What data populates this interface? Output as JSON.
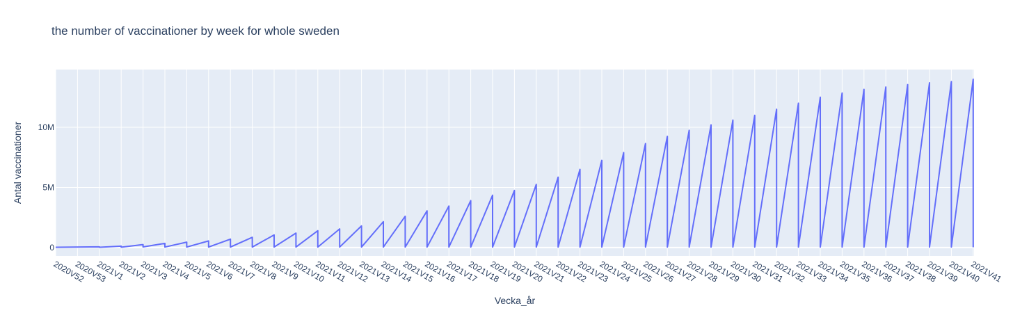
{
  "colors": {
    "plot_background": "#e5ecf6",
    "gridline": "#ffffff",
    "line": "#636efa",
    "text": "#2a3f5f"
  },
  "chart_data": {
    "type": "line",
    "title": "the number of vaccinationer by week for whole sweden",
    "xlabel": "Vecka_år",
    "ylabel": "Antal vaccinationer",
    "ylim": [
      -700000,
      14800000
    ],
    "y_ticks": [
      0,
      5000000,
      10000000
    ],
    "y_tick_labels": [
      "0",
      "5M",
      "10M"
    ],
    "grid": true,
    "categories": [
      "2020V52",
      "2020V53",
      "2021V1",
      "2021V2",
      "2021V3",
      "2021V4",
      "2021V5",
      "2021V6",
      "2021V7",
      "2021V8",
      "2021V9",
      "2021V10",
      "2021V11",
      "2021V12",
      "2021V13",
      "2021V14",
      "2021V15",
      "2021V16",
      "2021V17",
      "2021V18",
      "2021V19",
      "2021V20",
      "2021V21",
      "2021V22",
      "2021V23",
      "2021V24",
      "2021V25",
      "2021V26",
      "2021V27",
      "2021V28",
      "2021V29",
      "2021V30",
      "2021V31",
      "2021V32",
      "2021V33",
      "2021V34",
      "2021V35",
      "2021V36",
      "2021V37",
      "2021V38",
      "2021V39",
      "2021V40",
      "2021V41"
    ],
    "series": [
      {
        "name": "",
        "points": [
          {
            "x": "2020V52",
            "y": 20000
          },
          {
            "x": "2021V1",
            "y": 60000
          },
          {
            "x": "2021V1",
            "y": 20000
          },
          {
            "x": "2021V2",
            "y": 120000
          },
          {
            "x": "2021V2",
            "y": 30000
          },
          {
            "x": "2021V3",
            "y": 250000
          },
          {
            "x": "2021V3",
            "y": 50000
          },
          {
            "x": "2021V4",
            "y": 350000
          },
          {
            "x": "2021V4",
            "y": 40000
          },
          {
            "x": "2021V5",
            "y": 450000
          },
          {
            "x": "2021V5",
            "y": 40000
          },
          {
            "x": "2021V6",
            "y": 550000
          },
          {
            "x": "2021V6",
            "y": 40000
          },
          {
            "x": "2021V7",
            "y": 700000
          },
          {
            "x": "2021V7",
            "y": 40000
          },
          {
            "x": "2021V8",
            "y": 850000
          },
          {
            "x": "2021V8",
            "y": 40000
          },
          {
            "x": "2021V9",
            "y": 1050000
          },
          {
            "x": "2021V9",
            "y": 40000
          },
          {
            "x": "2021V10",
            "y": 1200000
          },
          {
            "x": "2021V10",
            "y": 40000
          },
          {
            "x": "2021V11",
            "y": 1400000
          },
          {
            "x": "2021V11",
            "y": 40000
          },
          {
            "x": "2021V12",
            "y": 1550000
          },
          {
            "x": "2021V12",
            "y": 40000
          },
          {
            "x": "2021V13",
            "y": 1800000
          },
          {
            "x": "2021V13",
            "y": 40000
          },
          {
            "x": "2021V14",
            "y": 2150000
          },
          {
            "x": "2021V14",
            "y": 40000
          },
          {
            "x": "2021V15",
            "y": 2600000
          },
          {
            "x": "2021V15",
            "y": 40000
          },
          {
            "x": "2021V16",
            "y": 3050000
          },
          {
            "x": "2021V16",
            "y": 40000
          },
          {
            "x": "2021V17",
            "y": 3450000
          },
          {
            "x": "2021V17",
            "y": 40000
          },
          {
            "x": "2021V18",
            "y": 3900000
          },
          {
            "x": "2021V18",
            "y": 40000
          },
          {
            "x": "2021V19",
            "y": 4350000
          },
          {
            "x": "2021V19",
            "y": 40000
          },
          {
            "x": "2021V20",
            "y": 4750000
          },
          {
            "x": "2021V20",
            "y": 40000
          },
          {
            "x": "2021V21",
            "y": 5250000
          },
          {
            "x": "2021V21",
            "y": 40000
          },
          {
            "x": "2021V22",
            "y": 5850000
          },
          {
            "x": "2021V22",
            "y": 40000
          },
          {
            "x": "2021V23",
            "y": 6500000
          },
          {
            "x": "2021V23",
            "y": 40000
          },
          {
            "x": "2021V24",
            "y": 7250000
          },
          {
            "x": "2021V24",
            "y": 40000
          },
          {
            "x": "2021V25",
            "y": 7900000
          },
          {
            "x": "2021V25",
            "y": 40000
          },
          {
            "x": "2021V26",
            "y": 8650000
          },
          {
            "x": "2021V26",
            "y": 40000
          },
          {
            "x": "2021V27",
            "y": 9250000
          },
          {
            "x": "2021V27",
            "y": 40000
          },
          {
            "x": "2021V28",
            "y": 9750000
          },
          {
            "x": "2021V28",
            "y": 40000
          },
          {
            "x": "2021V29",
            "y": 10200000
          },
          {
            "x": "2021V29",
            "y": 40000
          },
          {
            "x": "2021V30",
            "y": 10600000
          },
          {
            "x": "2021V30",
            "y": 40000
          },
          {
            "x": "2021V31",
            "y": 11000000
          },
          {
            "x": "2021V31",
            "y": 40000
          },
          {
            "x": "2021V32",
            "y": 11500000
          },
          {
            "x": "2021V32",
            "y": 40000
          },
          {
            "x": "2021V33",
            "y": 12000000
          },
          {
            "x": "2021V33",
            "y": 40000
          },
          {
            "x": "2021V34",
            "y": 12500000
          },
          {
            "x": "2021V34",
            "y": 40000
          },
          {
            "x": "2021V35",
            "y": 12850000
          },
          {
            "x": "2021V35",
            "y": 40000
          },
          {
            "x": "2021V36",
            "y": 13150000
          },
          {
            "x": "2021V36",
            "y": 40000
          },
          {
            "x": "2021V37",
            "y": 13350000
          },
          {
            "x": "2021V37",
            "y": 40000
          },
          {
            "x": "2021V38",
            "y": 13550000
          },
          {
            "x": "2021V38",
            "y": 40000
          },
          {
            "x": "2021V39",
            "y": 13700000
          },
          {
            "x": "2021V39",
            "y": 40000
          },
          {
            "x": "2021V40",
            "y": 13800000
          },
          {
            "x": "2021V40",
            "y": 40000
          },
          {
            "x": "2021V41",
            "y": 14000000
          },
          {
            "x": "2021V41",
            "y": 20000
          }
        ]
      }
    ]
  }
}
